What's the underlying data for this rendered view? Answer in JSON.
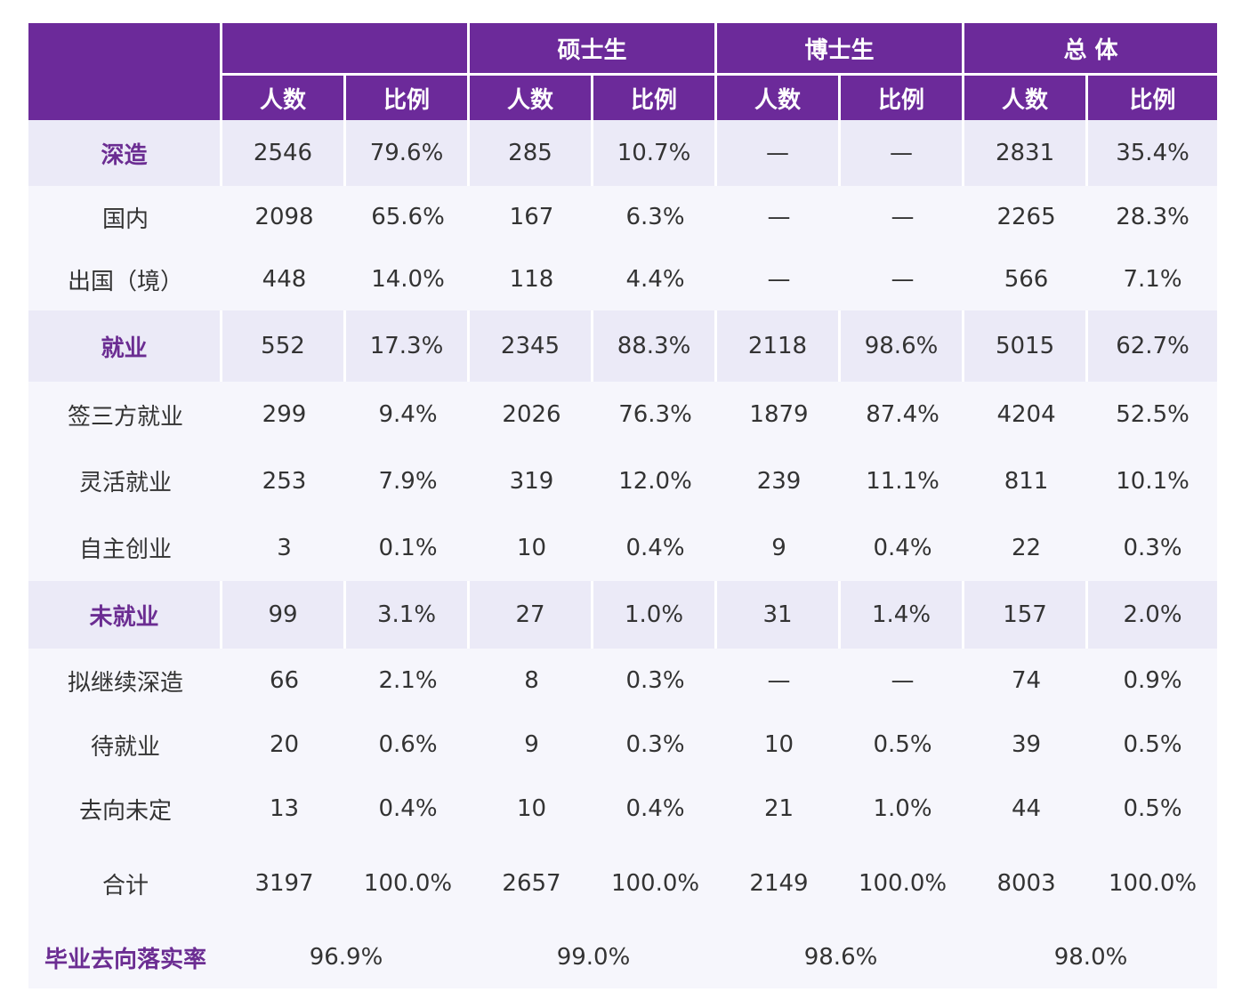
{
  "header": {
    "groups": [
      "",
      "硕士生",
      "博士生",
      "总 体"
    ],
    "sub_count": "人数",
    "sub_ratio": "比例"
  },
  "rows": [
    {
      "label": "深造",
      "cat": true,
      "v": [
        "2546",
        "79.6%",
        "285",
        "10.7%",
        "—",
        "—",
        "2831",
        "35.4%"
      ]
    },
    {
      "label": "国内",
      "cat": false,
      "v": [
        "2098",
        "65.6%",
        "167",
        "6.3%",
        "—",
        "—",
        "2265",
        "28.3%"
      ]
    },
    {
      "label": "出国（境）",
      "cat": false,
      "v": [
        "448",
        "14.0%",
        "118",
        "4.4%",
        "—",
        "—",
        "566",
        "7.1%"
      ]
    },
    {
      "label": "就业",
      "cat": true,
      "v": [
        "552",
        "17.3%",
        "2345",
        "88.3%",
        "2118",
        "98.6%",
        "5015",
        "62.7%"
      ]
    },
    {
      "label": "签三方就业",
      "cat": false,
      "v": [
        "299",
        "9.4%",
        "2026",
        "76.3%",
        "1879",
        "87.4%",
        "4204",
        "52.5%"
      ]
    },
    {
      "label": "灵活就业",
      "cat": false,
      "v": [
        "253",
        "7.9%",
        "319",
        "12.0%",
        "239",
        "11.1%",
        "811",
        "10.1%"
      ]
    },
    {
      "label": "自主创业",
      "cat": false,
      "v": [
        "3",
        "0.1%",
        "10",
        "0.4%",
        "9",
        "0.4%",
        "22",
        "0.3%"
      ]
    },
    {
      "label": "未就业",
      "cat": true,
      "v": [
        "99",
        "3.1%",
        "27",
        "1.0%",
        "31",
        "1.4%",
        "157",
        "2.0%"
      ]
    },
    {
      "label": "拟继续深造",
      "cat": false,
      "v": [
        "66",
        "2.1%",
        "8",
        "0.3%",
        "—",
        "—",
        "74",
        "0.9%"
      ]
    },
    {
      "label": "待就业",
      "cat": false,
      "v": [
        "20",
        "0.6%",
        "9",
        "0.3%",
        "10",
        "0.5%",
        "39",
        "0.5%"
      ]
    },
    {
      "label": "去向未定",
      "cat": false,
      "v": [
        "13",
        "0.4%",
        "10",
        "0.4%",
        "21",
        "1.0%",
        "44",
        "0.5%"
      ]
    },
    {
      "label": "合计",
      "cat": false,
      "v": [
        "3197",
        "100.0%",
        "2657",
        "100.0%",
        "2149",
        "100.0%",
        "8003",
        "100.0%"
      ]
    }
  ],
  "rate": {
    "label": "毕业去向落实率",
    "v": [
      "96.9%",
      "99.0%",
      "98.6%",
      "98.0%"
    ]
  }
}
